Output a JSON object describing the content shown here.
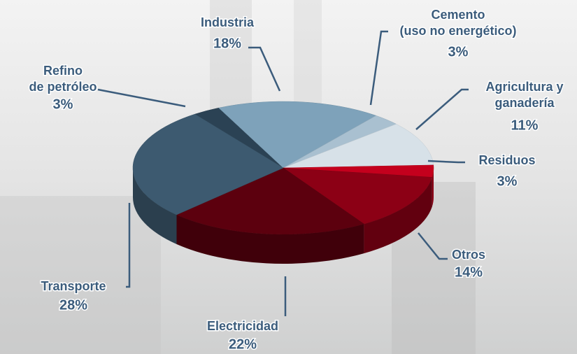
{
  "chart_data": {
    "type": "pie",
    "categories": [
      "Refino\nde petróleo",
      "Industria",
      "Cemento\n(uso no energético)",
      "Agricultura y\nganadería",
      "Residuos",
      "Otros",
      "Electricidad",
      "Transporte"
    ],
    "values": [
      3,
      18,
      3,
      11,
      3,
      14,
      22,
      28
    ],
    "value_labels": [
      "3%",
      "18%",
      "3%",
      "11%",
      "3%",
      "14%",
      "22%",
      "28%"
    ],
    "colors": [
      "#2b4254",
      "#7ea2ba",
      "#a9c0d0",
      "#d7e1e8",
      "#c4001d",
      "#8c0015",
      "#5c000e",
      "#3d5a70"
    ]
  }
}
